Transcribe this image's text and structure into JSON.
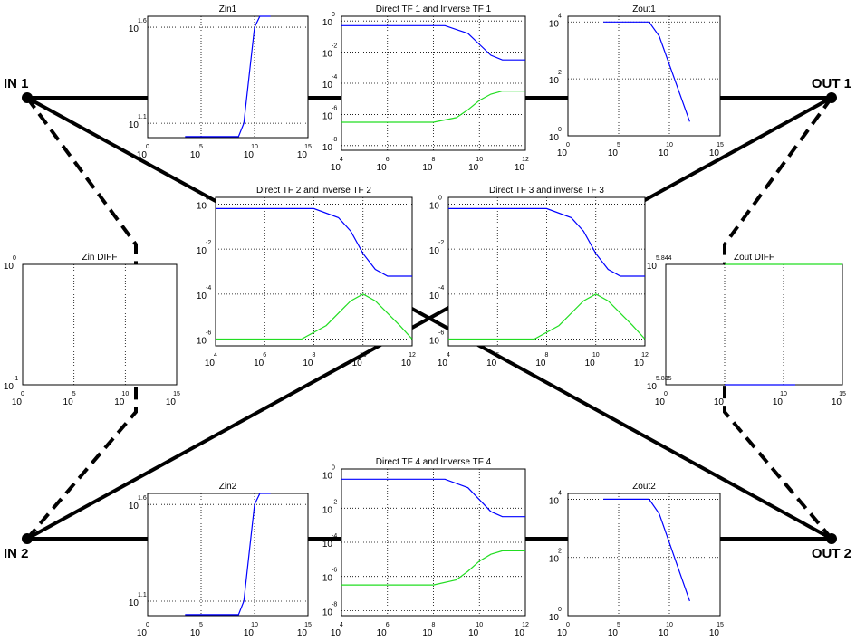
{
  "tick_base": "10",
  "nodes": [
    {
      "label": "IN 1"
    },
    {
      "label": "OUT 1"
    },
    {
      "label": "IN 2"
    },
    {
      "label": "OUT 2"
    }
  ],
  "plots": [
    {
      "title": "Zin1",
      "xlim": [
        0,
        15
      ],
      "xticks": [
        0,
        5,
        10,
        15
      ],
      "ylim": [
        1.025,
        1.657
      ],
      "yticks": [
        1.6,
        1.1
      ],
      "series": [
        {
          "color": "#0000ff",
          "x": [
            3.5,
            8.5,
            9,
            9.5,
            10,
            10.5,
            11.5
          ],
          "y": [
            1.03,
            1.03,
            1.1,
            1.35,
            1.6,
            1.657,
            1.657
          ]
        }
      ]
    },
    {
      "title": "Direct TF 1 and Inverse TF 1",
      "xlim": [
        4,
        12
      ],
      "xticks": [
        4,
        6,
        8,
        10,
        12
      ],
      "ylim": [
        -8.3,
        0.3
      ],
      "yticks": [
        0,
        -2,
        -4,
        -6,
        -8
      ],
      "series": [
        {
          "color": "#0000ff",
          "x": [
            4,
            8.5,
            9.5,
            10,
            10.5,
            11,
            12
          ],
          "y": [
            -0.3,
            -0.3,
            -0.8,
            -1.5,
            -2.2,
            -2.5,
            -2.5
          ]
        },
        {
          "color": "#22dd22",
          "x": [
            4,
            8,
            9,
            9.5,
            10,
            10.5,
            11,
            12
          ],
          "y": [
            -6.5,
            -6.5,
            -6.2,
            -5.7,
            -5.1,
            -4.7,
            -4.5,
            -4.5
          ]
        }
      ]
    },
    {
      "title": "Zout1",
      "xlim": [
        0,
        15
      ],
      "xticks": [
        0,
        5,
        10,
        15
      ],
      "ylim": [
        0,
        4.2
      ],
      "yticks": [
        4,
        2,
        0
      ],
      "series": [
        {
          "color": "#0000ff",
          "x": [
            3.5,
            8,
            9,
            10,
            11,
            12
          ],
          "y": [
            4,
            4,
            3.5,
            2.5,
            1.5,
            0.5
          ]
        }
      ]
    },
    {
      "title": "Direct TF 2 and inverse TF 2",
      "xlim": [
        4,
        12
      ],
      "xticks": [
        4,
        6,
        8,
        10,
        12
      ],
      "ylim": [
        -6.3,
        0.3
      ],
      "yticks": [
        0,
        -2,
        -4,
        -6
      ],
      "series": [
        {
          "color": "#0000ff",
          "x": [
            4,
            8,
            9,
            9.5,
            10,
            10.5,
            11,
            12
          ],
          "y": [
            -0.2,
            -0.2,
            -0.6,
            -1.2,
            -2.2,
            -2.9,
            -3.2,
            -3.2
          ]
        },
        {
          "color": "#22dd22",
          "x": [
            4,
            7.5,
            8.5,
            9.5,
            10,
            10.5,
            11.5,
            12
          ],
          "y": [
            -6,
            -6,
            -5.4,
            -4.3,
            -4,
            -4.3,
            -5.4,
            -6
          ]
        }
      ]
    },
    {
      "title": "Direct TF 3 and inverse TF 3",
      "xlim": [
        4,
        12
      ],
      "xticks": [
        4,
        6,
        8,
        10,
        12
      ],
      "ylim": [
        -6.3,
        0.3
      ],
      "yticks": [
        0,
        -2,
        -4,
        -6
      ],
      "series": [
        {
          "color": "#0000ff",
          "x": [
            4,
            8,
            9,
            9.5,
            10,
            10.5,
            11,
            12
          ],
          "y": [
            -0.2,
            -0.2,
            -0.6,
            -1.2,
            -2.2,
            -2.9,
            -3.2,
            -3.2
          ]
        },
        {
          "color": "#22dd22",
          "x": [
            4,
            7.5,
            8.5,
            9.5,
            10,
            10.5,
            11.5,
            12
          ],
          "y": [
            -6,
            -6,
            -5.4,
            -4.3,
            -4,
            -4.3,
            -5.4,
            -6
          ]
        }
      ]
    },
    {
      "title": "Zin DIFF",
      "xlim": [
        0,
        15
      ],
      "xticks": [
        0,
        5,
        10,
        15
      ],
      "ylim": [
        -1,
        0
      ],
      "yticks": [
        0,
        -1
      ],
      "series": []
    },
    {
      "title": "Zout DIFF",
      "xlim": [
        0,
        15
      ],
      "xticks": [
        0,
        5,
        10,
        15
      ],
      "ylim": [
        5.835,
        5.844
      ],
      "yticks": [
        5.844,
        5.835
      ],
      "series": [
        {
          "color": "#22dd22",
          "x": [
            5,
            15
          ],
          "y": [
            5.844,
            5.844
          ]
        },
        {
          "color": "#0000ff",
          "x": [
            5,
            11
          ],
          "y": [
            5.835,
            5.835
          ]
        }
      ]
    },
    {
      "title": "Zin2",
      "xlim": [
        0,
        15
      ],
      "xticks": [
        0,
        5,
        10,
        15
      ],
      "ylim": [
        1.025,
        1.657
      ],
      "yticks": [
        1.6,
        1.1
      ],
      "series": [
        {
          "color": "#0000ff",
          "x": [
            3.5,
            8.5,
            9,
            9.5,
            10,
            10.5,
            11.5
          ],
          "y": [
            1.03,
            1.03,
            1.1,
            1.35,
            1.6,
            1.657,
            1.657
          ]
        }
      ]
    },
    {
      "title": "Direct TF 4 and Inverse TF 4",
      "xlim": [
        4,
        12
      ],
      "xticks": [
        4,
        6,
        8,
        10,
        12
      ],
      "ylim": [
        -8.3,
        0.3
      ],
      "yticks": [
        0,
        -2,
        -4,
        -6,
        -8
      ],
      "series": [
        {
          "color": "#0000ff",
          "x": [
            4,
            8.5,
            9.5,
            10,
            10.5,
            11,
            12
          ],
          "y": [
            -0.3,
            -0.3,
            -0.8,
            -1.5,
            -2.2,
            -2.5,
            -2.5
          ]
        },
        {
          "color": "#22dd22",
          "x": [
            4,
            8,
            9,
            9.5,
            10,
            10.5,
            11,
            12
          ],
          "y": [
            -6.5,
            -6.5,
            -6.2,
            -5.7,
            -5.1,
            -4.7,
            -4.5,
            -4.5
          ]
        }
      ]
    },
    {
      "title": "Zout2",
      "xlim": [
        0,
        15
      ],
      "xticks": [
        0,
        5,
        10,
        15
      ],
      "ylim": [
        0,
        4.2
      ],
      "yticks": [
        4,
        2,
        0
      ],
      "series": [
        {
          "color": "#0000ff",
          "x": [
            3.5,
            8,
            9,
            10,
            11,
            12
          ],
          "y": [
            4,
            4,
            3.5,
            2.5,
            1.5,
            0.5
          ]
        }
      ]
    }
  ]
}
